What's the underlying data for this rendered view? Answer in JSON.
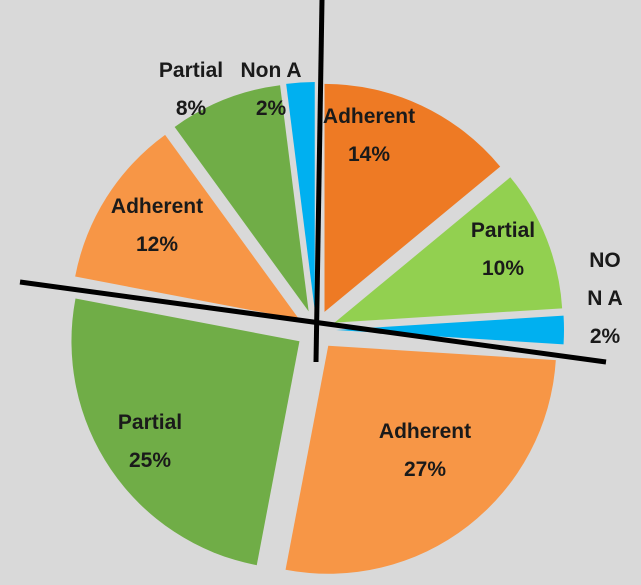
{
  "chart_data": {
    "type": "pie",
    "categories": [
      "Adherent",
      "Partial",
      "NON A",
      "Adherent",
      "Partial",
      "Adherent",
      "Partial",
      "Non A"
    ],
    "values": [
      14,
      10,
      2,
      27,
      25,
      12,
      8,
      2
    ],
    "value_labels": [
      "14%",
      "10%",
      "2%",
      "27%",
      "25%",
      "12%",
      "8%",
      "2%"
    ],
    "colors": [
      "#ee7a24",
      "#92d050",
      "#00b0f0",
      "#f79646",
      "#70ad47",
      "#f79646",
      "#70ad47",
      "#00b0f0"
    ]
  }
}
